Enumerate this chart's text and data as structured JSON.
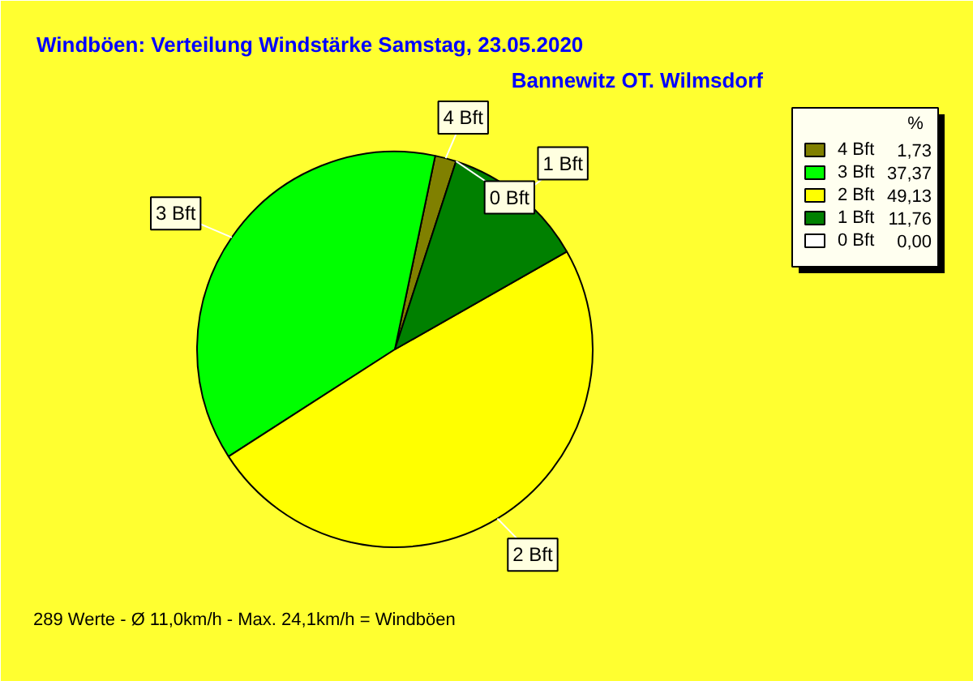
{
  "chart_data": {
    "type": "pie",
    "title": "Windböen: Verteilung Windstärke  Samstag, 23.05.2020",
    "subtitle": "Bannewitz OT. Wilmsdorf",
    "legend_title": "%",
    "legend": "top right",
    "categories": [
      "4 Bft",
      "3 Bft",
      "2 Bft",
      "1 Bft",
      "0 Bft"
    ],
    "values": [
      1.73,
      37.37,
      49.13,
      11.76,
      0.0
    ],
    "colors": [
      "#808000",
      "#00ff00",
      "#ffff00",
      "#008000",
      "#ffffff"
    ],
    "value_labels": [
      "1,73",
      "37,37",
      "49,13",
      "11,76",
      "0,00"
    ],
    "annotations": [
      "289 Werte   -   Ø 11,0km/h  -  Max. 24,1km/h = Windböen"
    ]
  }
}
